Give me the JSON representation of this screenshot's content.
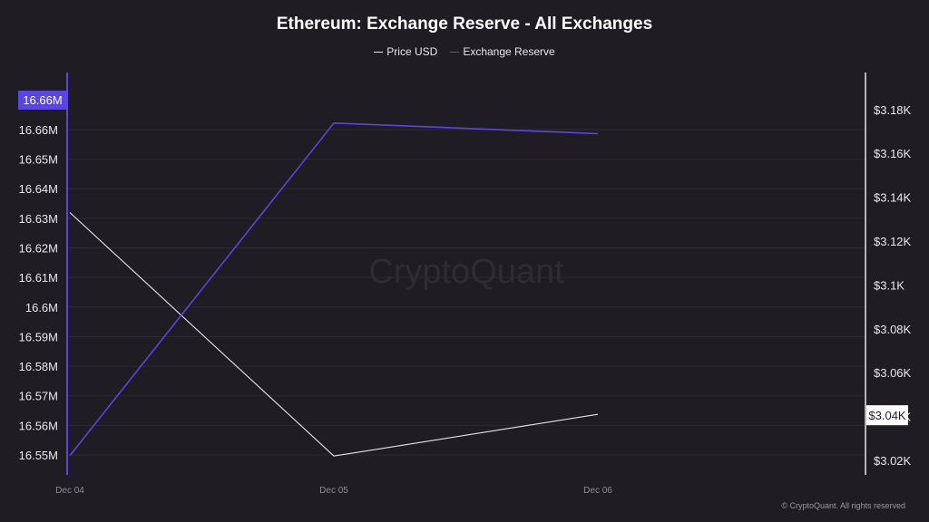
{
  "chart_data": {
    "type": "line",
    "title": "Ethereum: Exchange Reserve - All Exchanges",
    "x": [
      "Dec 04",
      "Dec 05",
      "Dec 06"
    ],
    "series": [
      {
        "name": "Price USD",
        "axis": "right",
        "color": "#e6e6ea",
        "values": [
          3133,
          3022,
          3041
        ]
      },
      {
        "name": "Exchange Reserve",
        "axis": "left",
        "color": "#5b45e0",
        "values": [
          16549800,
          16662200,
          16658600
        ]
      }
    ],
    "y_left": {
      "ticks": [
        16550000,
        16560000,
        16570000,
        16580000,
        16590000,
        16600000,
        16610000,
        16620000,
        16630000,
        16640000,
        16650000,
        16660000
      ],
      "tick_labels": [
        "16.55M",
        "16.56M",
        "16.57M",
        "16.58M",
        "16.59M",
        "16.6M",
        "16.61M",
        "16.62M",
        "16.63M",
        "16.64M",
        "16.65M",
        "16.66M"
      ],
      "badge": "16.66M"
    },
    "y_right": {
      "ticks": [
        3020,
        3040,
        3060,
        3080,
        3100,
        3120,
        3140,
        3160,
        3180
      ],
      "tick_labels": [
        "$3.02K",
        "$3.04K",
        "$3.06K",
        "$3.08K",
        "$3.1K",
        "$3.12K",
        "$3.14K",
        "$3.16K",
        "$3.18K"
      ],
      "badge": "$3.04K"
    },
    "grid": true,
    "legend_position": "top-center",
    "watermark": "CryptoQuant"
  },
  "footer": "© CryptoQuant. All rights reserved",
  "colors": {
    "background": "#1f1d23",
    "reserve": "#5b45e0",
    "price": "#e6e6ea",
    "grid": "#2c2a32"
  }
}
